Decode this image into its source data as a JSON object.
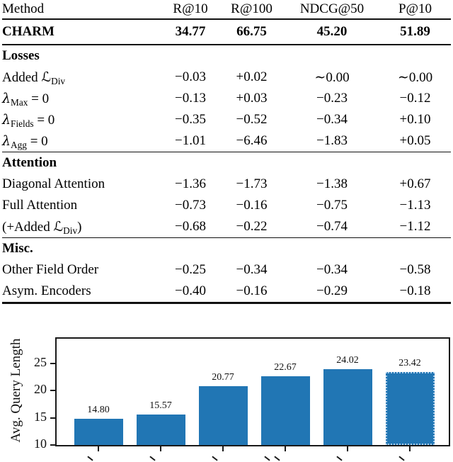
{
  "table": {
    "columns": [
      "Method",
      "R@10",
      "R@100",
      "NDCG@50",
      "P@10"
    ],
    "groups": [
      {
        "header": null,
        "kind": "charm",
        "rows": [
          {
            "label": [
              {
                "t": "CHARM"
              }
            ],
            "values": [
              "34.77",
              "66.75",
              "45.20",
              "51.89"
            ],
            "bold": true
          }
        ]
      },
      {
        "header": "Losses",
        "kind": "mid",
        "rows": [
          {
            "label": [
              {
                "t": "Added "
              },
              {
                "t": "ℒ",
                "cls": "scr"
              },
              {
                "t": "Div",
                "sub": true
              }
            ],
            "values": [
              "−0.03",
              "+0.02",
              "∼0.00",
              "∼0.00"
            ]
          },
          {
            "label": [
              {
                "t": "λ",
                "cls": "gl"
              },
              {
                "t": "Max",
                "sub": true
              },
              {
                "t": " = 0"
              }
            ],
            "values": [
              "−0.13",
              "+0.03",
              "−0.23",
              "−0.12"
            ]
          },
          {
            "label": [
              {
                "t": "λ",
                "cls": "gl"
              },
              {
                "t": "Fields",
                "sub": true
              },
              {
                "t": " = 0"
              }
            ],
            "values": [
              "−0.35",
              "−0.52",
              "−0.34",
              "+0.10"
            ]
          },
          {
            "label": [
              {
                "t": "λ",
                "cls": "gl"
              },
              {
                "t": "Agg",
                "sub": true
              },
              {
                "t": " = 0"
              }
            ],
            "values": [
              "−1.01",
              "−6.46",
              "−1.83",
              "+0.05"
            ]
          }
        ]
      },
      {
        "header": "Attention",
        "kind": "mid",
        "rows": [
          {
            "label": [
              {
                "t": "Diagonal Attention"
              }
            ],
            "values": [
              "−1.36",
              "−1.73",
              "−1.38",
              "+0.67"
            ]
          },
          {
            "label": [
              {
                "t": "Full Attention"
              }
            ],
            "values": [
              "−0.73",
              "−0.16",
              "−0.75",
              "−1.13"
            ]
          },
          {
            "label": [
              {
                "t": "(+Added "
              },
              {
                "t": "ℒ",
                "cls": "scr"
              },
              {
                "t": "Div",
                "sub": true
              },
              {
                "t": ")"
              }
            ],
            "values": [
              "−0.68",
              "−0.22",
              "−0.74",
              "−1.12"
            ]
          }
        ]
      },
      {
        "header": "Misc.",
        "kind": "last",
        "rows": [
          {
            "label": [
              {
                "t": "Other Field Order"
              }
            ],
            "values": [
              "−0.25",
              "−0.34",
              "−0.34",
              "−0.58"
            ]
          },
          {
            "label": [
              {
                "t": "Asym. Encoders"
              }
            ],
            "values": [
              "−0.40",
              "−0.16",
              "−0.29",
              "−0.18"
            ]
          }
        ]
      }
    ]
  },
  "chart_data": {
    "type": "bar",
    "title": "",
    "xlabel": "",
    "ylabel": "Avg. Query Length",
    "categories": [
      "",
      "",
      "",
      "",
      "",
      ""
    ],
    "x_tick_labels_note": "rotated x tick labels are cut off at the bottom edge of the image; only small fragments visible",
    "values": [
      14.8,
      15.57,
      20.77,
      22.67,
      24.02,
      23.42
    ],
    "bar_labels": [
      "14.80",
      "15.57",
      "20.77",
      "22.67",
      "24.02",
      "23.42"
    ],
    "yticks": [
      10,
      15,
      20,
      25
    ],
    "ylim": [
      10,
      29.5
    ],
    "grid": false,
    "legend": null,
    "bar_color": "#2176b4",
    "last_bar_edge_style": "dotted light blue outline"
  }
}
